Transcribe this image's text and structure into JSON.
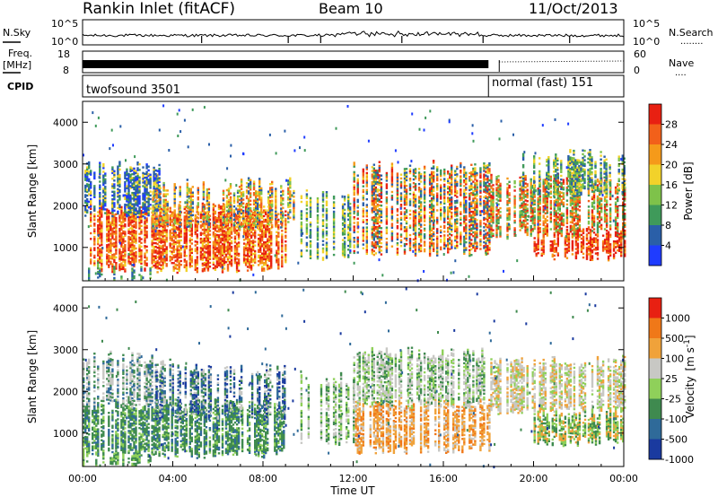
{
  "header": {
    "station": "Rankin Inlet (fitACF)",
    "beam": "Beam 10",
    "date": "11/Oct/2013"
  },
  "colors": {
    "power": [
      "#1f3cff",
      "#2a5fa8",
      "#3f9a5a",
      "#7ec24a",
      "#f2d22a",
      "#f59a1a",
      "#f2601a",
      "#e82012"
    ],
    "velocity": [
      "#1a3a9f",
      "#2f6a99",
      "#3f8a4f",
      "#8fd05a",
      "#c8c8c4",
      "#f0a23a",
      "#f07818",
      "#e82012"
    ]
  },
  "chart_data": [
    {
      "type": "line",
      "panel": "noise",
      "left_label": "N.Sky",
      "right_label": "N.Search",
      "yticks_left": [
        "10^5",
        "10^0"
      ],
      "yticks_right": [
        "10^5",
        "10^0"
      ],
      "legend_right": "N.Search ......"
    },
    {
      "type": "line",
      "panel": "frequency-nave",
      "left_label_1": "Freq.",
      "left_label_2": "[MHz]",
      "right_label": "Nave",
      "yticks_left": [
        "18",
        "8"
      ],
      "yticks_right": [
        "60",
        "0"
      ],
      "legend_right": "Nave ....",
      "cpid_label": "CPID",
      "cpid_segments": [
        {
          "label": "twofsound 3501",
          "start_hour": 0,
          "end_hour": 18.0
        },
        {
          "label": "normal (fast) 151",
          "start_hour": 18.0,
          "end_hour": 24
        }
      ]
    },
    {
      "type": "heatmap",
      "panel": "power",
      "ylabel": "Slant Range [km]",
      "ylim": [
        200,
        4500
      ],
      "yticks": [
        "1000",
        "2000",
        "3000",
        "4000"
      ],
      "colorbar_label": "Power [dB]",
      "colorbar_ticks": [
        "4",
        "8",
        "12",
        "16",
        "20",
        "24",
        "28"
      ],
      "dominant_features": [
        {
          "hours": [
            0,
            9
          ],
          "range_km": [
            600,
            2000
          ],
          "level": "20-28 dB"
        },
        {
          "hours": [
            12,
            24
          ],
          "range_km": [
            1000,
            2500
          ],
          "level": "16-28 dB"
        },
        {
          "hours": [
            20,
            24
          ],
          "range_km": [
            800,
            1300
          ],
          "level": "24-28 dB"
        }
      ]
    },
    {
      "type": "heatmap",
      "panel": "velocity",
      "ylabel": "Slant Range [km]",
      "ylim": [
        200,
        4500
      ],
      "yticks": [
        "1000",
        "2000",
        "3000",
        "4000"
      ],
      "colorbar_label": "Velocity",
      "colorbar_label_unit": "[m s",
      "colorbar_label_exp": "-1",
      "colorbar_label_close": "]",
      "colorbar_ticks": [
        "1000",
        "500",
        "100",
        "25",
        "-25",
        "-100",
        "-500",
        "-1000"
      ],
      "xlabel": "Time UT",
      "xticks": [
        "00:00",
        "04:00",
        "08:00",
        "12:00",
        "16:00",
        "20:00",
        "00:00"
      ],
      "xlim_hours": [
        0,
        24
      ]
    }
  ]
}
